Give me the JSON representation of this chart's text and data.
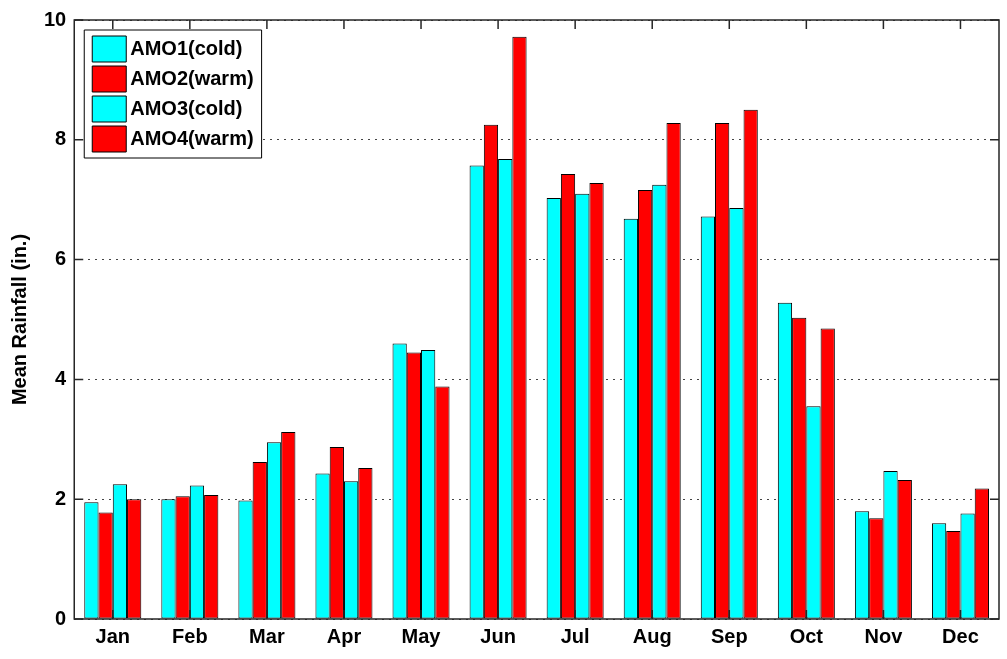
{
  "chart_data": {
    "type": "bar",
    "ylabel": "Mean Rainfall (in.)",
    "categories": [
      "Jan",
      "Feb",
      "Mar",
      "Apr",
      "May",
      "Jun",
      "Jul",
      "Aug",
      "Sep",
      "Oct",
      "Nov",
      "Dec"
    ],
    "series": [
      {
        "name": "AMO1(cold)",
        "color": "#00ffff",
        "values": [
          1.95,
          2.0,
          1.98,
          2.43,
          4.6,
          7.57,
          7.03,
          6.68,
          6.72,
          5.28,
          1.8,
          1.6
        ]
      },
      {
        "name": "AMO2(warm)",
        "color": "#ff0000",
        "values": [
          1.78,
          2.05,
          2.62,
          2.87,
          4.45,
          8.25,
          7.43,
          7.16,
          8.28,
          5.03,
          1.68,
          1.47
        ]
      },
      {
        "name": "AMO3(cold)",
        "color": "#00ffff",
        "values": [
          2.25,
          2.23,
          2.95,
          2.3,
          4.49,
          7.68,
          7.1,
          7.25,
          6.86,
          3.55,
          2.47,
          1.76
        ]
      },
      {
        "name": "AMO4(warm)",
        "color": "#ff0000",
        "values": [
          2.0,
          2.07,
          3.12,
          2.52,
          3.88,
          9.72,
          7.28,
          8.28,
          8.5,
          4.85,
          2.32,
          2.18
        ]
      }
    ],
    "ylim": [
      0,
      10
    ],
    "yticks": [
      0,
      2,
      4,
      6,
      8,
      10
    ],
    "grid": "y",
    "legend": "top left"
  }
}
